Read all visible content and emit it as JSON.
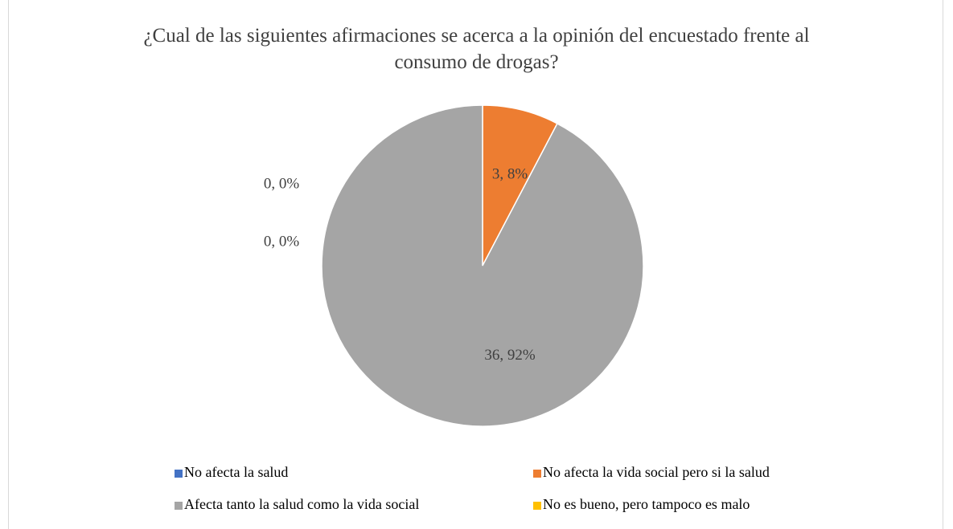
{
  "chart_data": {
    "type": "pie",
    "title": "¿Cual de las siguientes afirmaciones se acerca a la opinión del encuestado frente al consumo de drogas?",
    "categories": [
      "No afecta la salud",
      "No afecta la vida social pero si la salud",
      "Afecta tanto la salud como la vida social",
      "No es bueno, pero tampoco es malo"
    ],
    "values": [
      0,
      3,
      36,
      0
    ],
    "value_labels": [
      "0, 0%",
      "3, 8%",
      "36, 92%",
      "0, 0%"
    ],
    "colors": [
      "#4472c4",
      "#ed7d31",
      "#a5a5a5",
      "#ffc000"
    ],
    "legend": "bottom"
  }
}
